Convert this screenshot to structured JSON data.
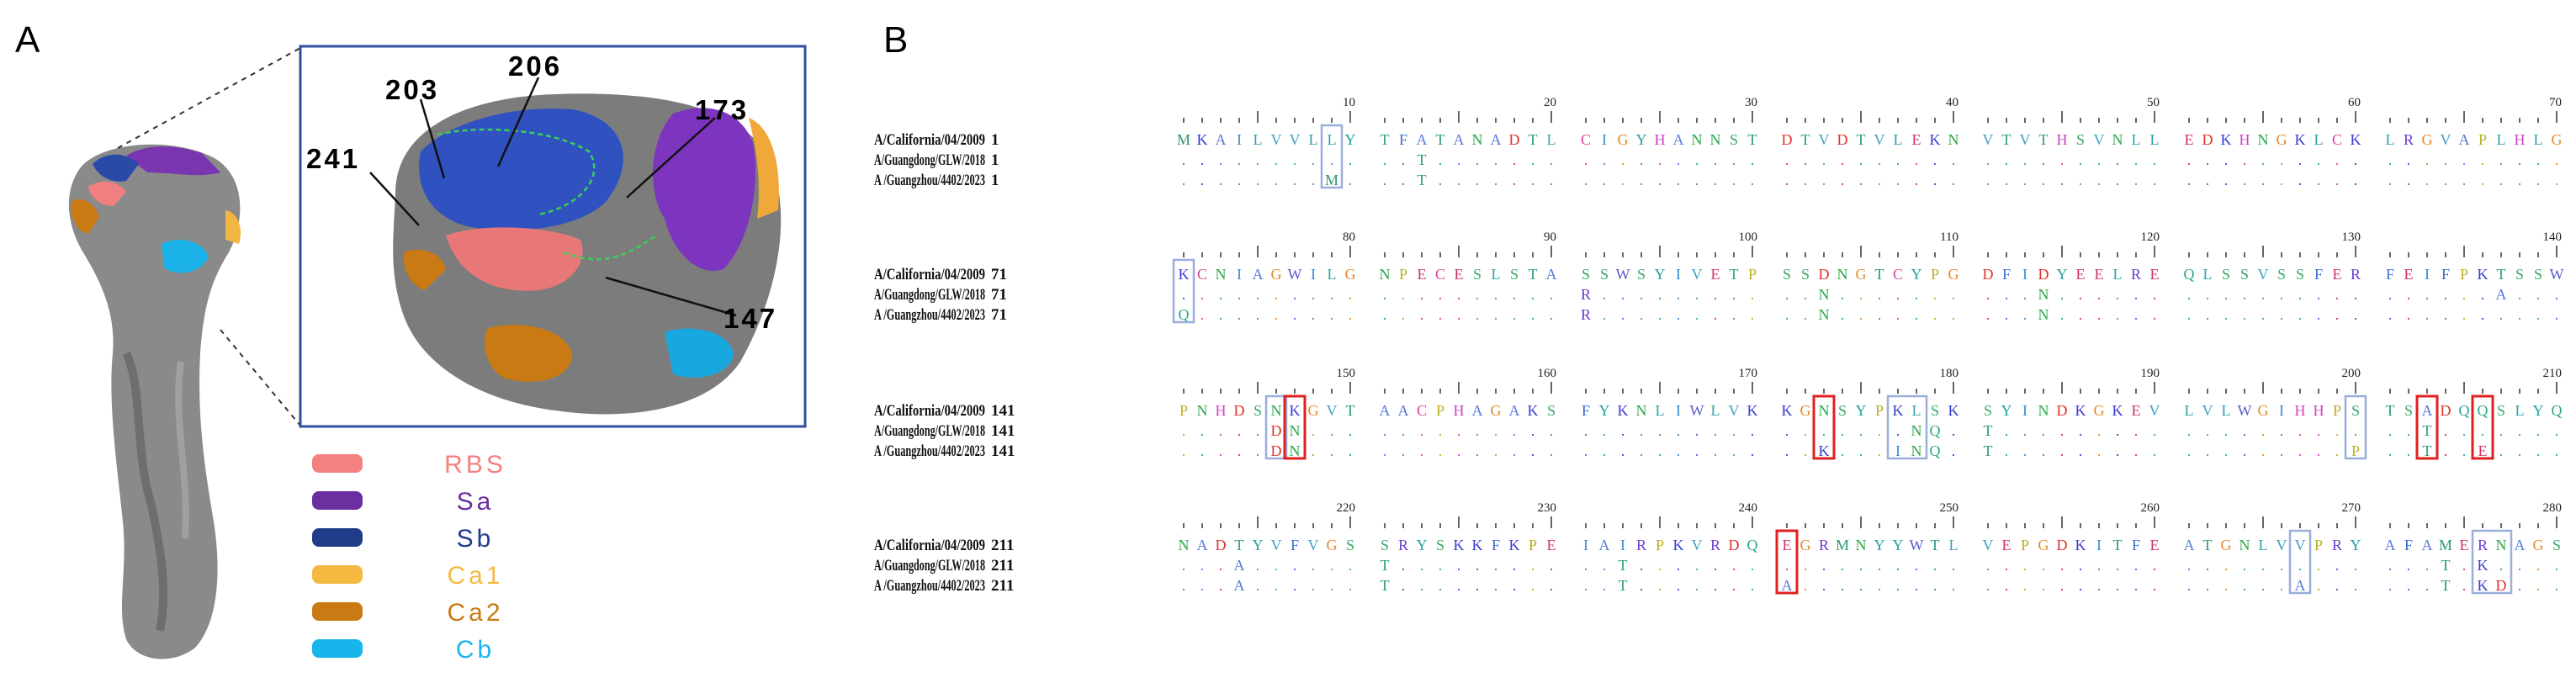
{
  "panel_a": {
    "label": "A",
    "site_labels": [
      "203",
      "206",
      "173",
      "241",
      "147"
    ],
    "legend": [
      {
        "text": "RBS",
        "color": "#f48080"
      },
      {
        "text": "Sa",
        "color": "#6b2fa0"
      },
      {
        "text": "Sb",
        "color": "#1f3c88"
      },
      {
        "text": "Ca1",
        "color": "#f5b942"
      },
      {
        "text": "Ca2",
        "color": "#c97a12"
      },
      {
        "text": "Cb",
        "color": "#18b4ec"
      }
    ]
  },
  "panel_b": {
    "label": "B",
    "blocks": [
      {
        "ticks": [
          10,
          20,
          30,
          40,
          50,
          60,
          70
        ],
        "rows": [
          {
            "name": "A/California/04/2009",
            "start": 1,
            "groups": [
              "MKAILVVLLY",
              "TFATANADTL",
              "CIGYHANNST",
              "DTVDTVLEKN",
              "VTVTHSVNLL",
              "EDKHNGKLCK",
              "LRGVAPLHLG"
            ]
          },
          {
            "name": "A/Guangdong/GLW/2018",
            "start": 1,
            "groups": [
              "..........",
              "..T.......",
              "..........",
              "..........",
              "..........",
              "..........",
              ".........."
            ]
          },
          {
            "name": "A /Guangzhou/4402/2023",
            "start": 1,
            "groups": [
              "........M.",
              "..T.......",
              "..........",
              "..........",
              "..........",
              "..........",
              ".........."
            ]
          }
        ]
      },
      {
        "ticks": [
          80,
          90,
          100,
          110,
          120,
          130,
          140
        ],
        "rows": [
          {
            "name": "A/California/04/2009",
            "start": 71,
            "groups": [
              "KCNIAGWILG",
              "NPECESLSTA",
              "SSWSYIVETP",
              "SSDNGTCYPG",
              "DFIDYEELRE",
              "QLSSVSSFER",
              "FEIFPKTSSW"
            ]
          },
          {
            "name": "A/Guangdong/GLW/2018",
            "start": 71,
            "groups": [
              "..........",
              "..........",
              "R.........",
              "..N.......",
              "...N......",
              "..........",
              "......A..."
            ]
          },
          {
            "name": "A /Guangzhou/4402/2023",
            "start": 71,
            "groups": [
              "Q.........",
              "..........",
              "R.........",
              "..N.......",
              "...N......",
              "..........",
              ".........."
            ]
          }
        ]
      },
      {
        "ticks": [
          150,
          160,
          170,
          180,
          190,
          200,
          210
        ],
        "rows": [
          {
            "name": "A/California/04/2009",
            "start": 141,
            "groups": [
              "PNHDSNKGVT",
              "AACPHAGAKS",
              "FYKNLIWLVK",
              "KGNSYPKLSK",
              "SYINDKGKEV",
              "LVLWGIHHPS",
              "TSADQQSLYQ"
            ]
          },
          {
            "name": "A/Guangdong/GLW/2018",
            "start": 141,
            "groups": [
              ".....DN...",
              "..........",
              "..........",
              ".......NQ.",
              "T.........",
              "..........",
              "..T......."
            ]
          },
          {
            "name": "A /Guangzhou/4402/2023",
            "start": 141,
            "groups": [
              ".....DN...",
              "..........",
              "..........",
              "..K...INQ.",
              "T.........",
              ".........P",
              "..T..E...."
            ]
          }
        ]
      },
      {
        "ticks": [
          220,
          230,
          240,
          250,
          260,
          270,
          280
        ],
        "rows": [
          {
            "name": "A/California/04/2009",
            "start": 211,
            "groups": [
              "NADTYVFVGS",
              "SRYSKKFKPE",
              "IAIRPKVRDQ",
              "EGRMNYYWTL",
              "VEPGDKITFE",
              "ATGNLVVPRY",
              "AFAMERNAGS"
            ]
          },
          {
            "name": "A/Guangdong/GLW/2018",
            "start": 211,
            "groups": [
              "...A......",
              "T.........",
              "..T.......",
              "..........",
              "..........",
              "..........",
              "...T.K...."
            ]
          },
          {
            "name": "A /Guangzhou/4402/2023",
            "start": 211,
            "groups": [
              "...A......",
              "T.........",
              "..T.......",
              "A.........",
              "..........",
              "......A...",
              "...T.KD..."
            ]
          }
        ]
      }
    ]
  }
}
